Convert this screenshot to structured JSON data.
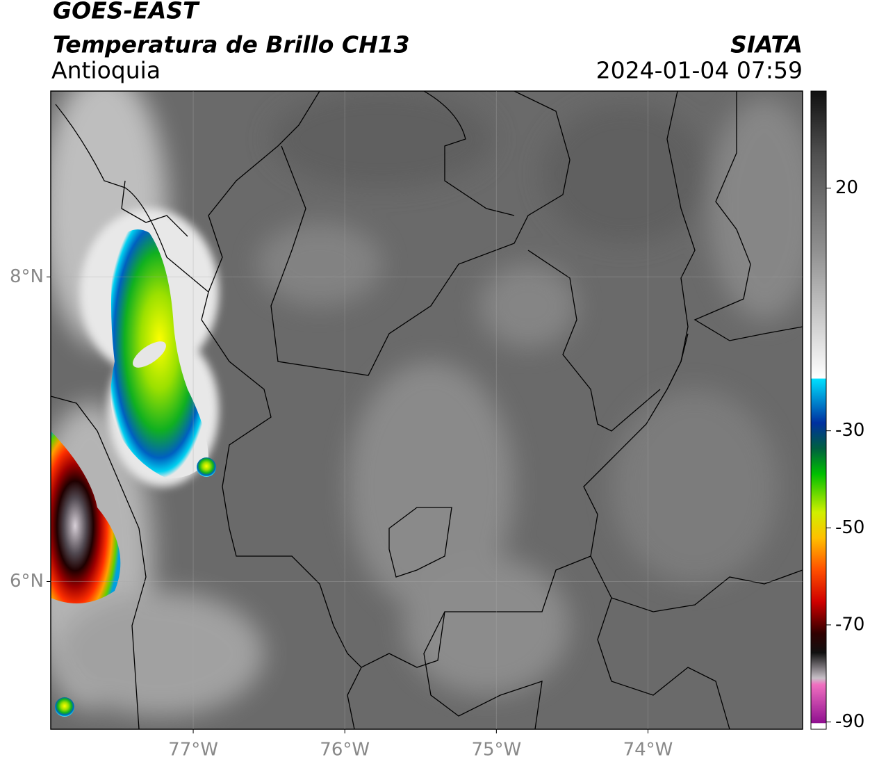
{
  "header": {
    "title": "GOES-EAST",
    "subtitle": "Temperatura de Brillo CH13",
    "region": "Antioquia",
    "source": "SIATA",
    "datetime": "2024-01-04 07:59"
  },
  "map": {
    "lon_range": [
      -77.94,
      -72.98
    ],
    "lat_range": [
      5.03,
      9.22
    ],
    "lat_ticks": [
      {
        "value": 8,
        "label": "8°N"
      },
      {
        "value": 6,
        "label": "6°N"
      }
    ],
    "lon_ticks": [
      {
        "value": -77,
        "label": "77°W"
      },
      {
        "value": -76,
        "label": "76°W"
      },
      {
        "value": -75,
        "label": "75°W"
      },
      {
        "value": -74,
        "label": "74°W"
      }
    ]
  },
  "colorbar": {
    "lim": [
      -91.5,
      40
    ],
    "ticks": [
      20,
      -30,
      -50,
      -70,
      -90
    ]
  }
}
